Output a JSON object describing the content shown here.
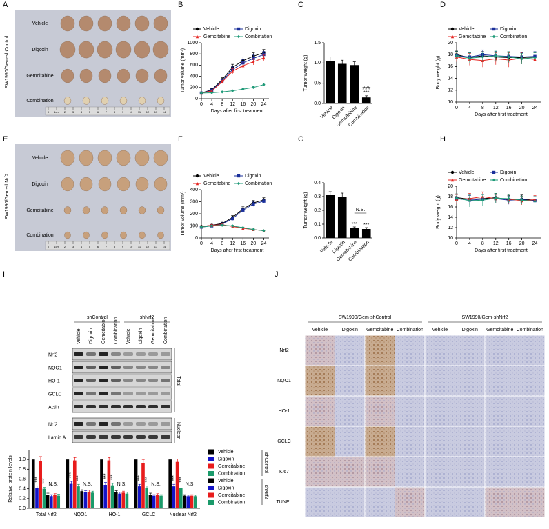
{
  "panel_letters": [
    "A",
    "B",
    "C",
    "D",
    "E",
    "F",
    "G",
    "H",
    "I",
    "J"
  ],
  "photo_panels": [
    {
      "side_label": "SW1990/Gem-shControl",
      "rows": [
        "Vehicle",
        "Digoxin",
        "Gemcitabine",
        "Combination"
      ],
      "ruler": [
        "0",
        "1cm",
        "2",
        "3",
        "4",
        "5",
        "6",
        "7",
        "8",
        "9",
        "10",
        "11",
        "12",
        "13",
        "14"
      ]
    },
    {
      "side_label": "SW1990/Gem-shNrf2",
      "rows": [
        "Vehicle",
        "Digoxin",
        "Gemcitabine",
        "Combination"
      ],
      "ruler": [
        "0",
        "1cm",
        "2",
        "3",
        "4",
        "5",
        "6",
        "7",
        "8",
        "9",
        "10",
        "11",
        "12",
        "13",
        "14"
      ]
    }
  ],
  "blot": {
    "groups": [
      "shControl",
      "shNrf2"
    ],
    "lanes": [
      "Vehicle",
      "Digoxin",
      "Gemcitabine",
      "Combination",
      "Vehicle",
      "Digoxin",
      "Gemcitabine",
      "Combination"
    ],
    "rows": [
      "Nrf2",
      "NQO1",
      "HO-1",
      "GCLC",
      "Actin",
      "Nrf2",
      "Lamin A"
    ],
    "sections": [
      "Total",
      "Nuclear"
    ]
  },
  "ihc": {
    "groups": [
      "SW1990/Gem-shControl",
      "SW1990/Gem-shNrf2"
    ],
    "columns": [
      "Vehicle",
      "Digoxin",
      "Gemcitabine",
      "Combination",
      "Vehicle",
      "Digoxin",
      "Gemcitabine",
      "Combination"
    ],
    "rows": [
      "Nrf2",
      "NQO1",
      "HO-1",
      "GCLC",
      "Ki67",
      "TUNEL"
    ]
  },
  "chart_data": [
    {
      "type": "line",
      "y_label": "Tumor volume (mm³)",
      "x_label": "Days after first treatment",
      "x": [
        0,
        4,
        8,
        12,
        16,
        20,
        24
      ],
      "xlim": [
        0,
        26
      ],
      "xticks": [
        0,
        4,
        8,
        12,
        16,
        20,
        24
      ],
      "ylim": [
        0,
        1000
      ],
      "yticks": [
        0,
        200,
        400,
        600,
        800,
        1000
      ],
      "series": [
        {
          "name": "Vehicle",
          "color": "#000000",
          "marker": "circle",
          "values": [
            100,
            160,
            340,
            560,
            680,
            760,
            820
          ],
          "errors": [
            8,
            20,
            35,
            55,
            65,
            60,
            60
          ]
        },
        {
          "name": "Digoxin",
          "color": "#1a2f9a",
          "marker": "square",
          "values": [
            100,
            150,
            320,
            520,
            640,
            720,
            790
          ],
          "errors": [
            8,
            18,
            30,
            50,
            60,
            60,
            55
          ]
        },
        {
          "name": "Gemcitabine",
          "color": "#e52420",
          "marker": "triangle",
          "values": [
            100,
            140,
            300,
            490,
            590,
            660,
            730
          ],
          "errors": [
            8,
            15,
            30,
            45,
            50,
            55,
            50
          ]
        },
        {
          "name": "Combination",
          "color": "#1f9a78",
          "marker": "diamond",
          "values": [
            100,
            105,
            120,
            140,
            170,
            200,
            250
          ],
          "errors": [
            5,
            8,
            10,
            12,
            15,
            20,
            25
          ]
        }
      ]
    },
    {
      "type": "bar",
      "y_label": "Tumor weight (g)",
      "categories": [
        "Vehicle",
        "Digoxin",
        "Gemcitabine",
        "Combination"
      ],
      "values": [
        1.05,
        0.98,
        0.95,
        0.15
      ],
      "errors": [
        0.1,
        0.09,
        0.08,
        0.04
      ],
      "color": "#000000",
      "ylim": [
        0,
        1.5
      ],
      "yticks": [
        {
          "value": 0,
          "label": "0.0"
        },
        0.5,
        {
          "value": 1,
          "label": "1.0"
        },
        1.5
      ],
      "annotations": [
        {
          "text": "***",
          "category": "Combination"
        },
        {
          "text": "###",
          "category": "Combination"
        }
      ]
    },
    {
      "type": "line",
      "y_label": "Body weight (g)",
      "x_label": "Days after first treatment",
      "x": [
        0,
        4,
        8,
        12,
        16,
        20,
        24
      ],
      "xlim": [
        0,
        26
      ],
      "xticks": [
        0,
        4,
        8,
        12,
        16,
        20,
        24
      ],
      "ylim": [
        10,
        20
      ],
      "yticks": [
        10,
        12,
        14,
        16,
        18,
        20
      ],
      "series": [
        {
          "name": "Vehicle",
          "color": "#000000",
          "marker": "circle",
          "values": [
            18,
            17.5,
            17.8,
            17.6,
            17.5,
            17.5,
            17.6
          ],
          "errors": [
            0.6,
            0.8,
            0.7,
            0.8,
            0.9,
            0.8,
            0.7
          ]
        },
        {
          "name": "Digoxin",
          "color": "#1a2f9a",
          "marker": "square",
          "values": [
            17.8,
            17.6,
            18,
            17.8,
            17.7,
            17.6,
            17.7
          ],
          "errors": [
            0.7,
            0.7,
            0.8,
            0.7,
            0.8,
            0.7,
            0.8
          ]
        },
        {
          "name": "Gemcitabine",
          "color": "#e52420",
          "marker": "triangle",
          "values": [
            17.6,
            17.2,
            17,
            17.3,
            17.1,
            17.4,
            17.2
          ],
          "errors": [
            0.8,
            1,
            1.1,
            1,
            1.2,
            1,
            0.9
          ]
        },
        {
          "name": "Combination",
          "color": "#1f9a78",
          "marker": "diamond",
          "values": [
            17.8,
            17.4,
            17.6,
            17.8,
            17.6,
            17.3,
            17.5
          ],
          "errors": [
            0.7,
            0.9,
            0.8,
            0.8,
            0.9,
            0.9,
            0.8
          ]
        }
      ]
    },
    {
      "type": "line",
      "y_label": "Tumor volume (mm³)",
      "x_label": "Days after first treatment",
      "x": [
        0,
        4,
        8,
        12,
        16,
        20,
        24
      ],
      "xlim": [
        0,
        26
      ],
      "xticks": [
        0,
        4,
        8,
        12,
        16,
        20,
        24
      ],
      "ylim": [
        0,
        400
      ],
      "yticks": [
        0,
        100,
        200,
        300,
        400
      ],
      "series": [
        {
          "name": "Vehicle",
          "color": "#000000",
          "marker": "circle",
          "values": [
            95,
            105,
            120,
            170,
            240,
            290,
            315
          ],
          "errors": [
            5,
            8,
            10,
            15,
            18,
            20,
            18
          ]
        },
        {
          "name": "Digoxin",
          "color": "#1a2f9a",
          "marker": "square",
          "values": [
            90,
            100,
            115,
            160,
            230,
            280,
            305
          ],
          "errors": [
            5,
            8,
            10,
            14,
            16,
            18,
            18
          ]
        },
        {
          "name": "Gemcitabine",
          "color": "#e52420",
          "marker": "triangle",
          "values": [
            95,
            105,
            110,
            95,
            80,
            70,
            60
          ],
          "errors": [
            5,
            6,
            8,
            6,
            5,
            5,
            4
          ]
        },
        {
          "name": "Combination",
          "color": "#1f9a78",
          "marker": "diamond",
          "values": [
            90,
            100,
            105,
            100,
            85,
            70,
            60
          ],
          "errors": [
            5,
            6,
            7,
            6,
            5,
            4,
            4
          ]
        }
      ]
    },
    {
      "type": "bar",
      "y_label": "Tumor weight (g)",
      "categories": [
        "Vehicle",
        "Digoxin",
        "Gemcitabine",
        "Combination"
      ],
      "values": [
        0.31,
        0.295,
        0.07,
        0.065
      ],
      "errors": [
        0.025,
        0.03,
        0.01,
        0.01
      ],
      "color": "#000000",
      "ylim": [
        0,
        0.4
      ],
      "yticks": [
        {
          "value": 0,
          "label": "0.0"
        },
        0.1,
        0.2,
        0.3,
        0.4
      ],
      "annotations": [
        {
          "text": "***",
          "category": "Gemcitabine"
        },
        {
          "text": "***",
          "category": "Combination"
        },
        {
          "text": "N.S.",
          "category": "Gemcitabine"
        }
      ]
    },
    {
      "type": "line",
      "y_label": "Body weight (g)",
      "x_label": "Days after first treatment",
      "x": [
        0,
        4,
        8,
        12,
        16,
        20,
        24
      ],
      "xlim": [
        0,
        26
      ],
      "xticks": [
        0,
        4,
        8,
        12,
        16,
        20,
        24
      ],
      "ylim": [
        10,
        20
      ],
      "yticks": [
        10,
        12,
        14,
        16,
        18,
        20
      ],
      "series": [
        {
          "name": "Vehicle",
          "color": "#000000",
          "marker": "circle",
          "values": [
            17.8,
            17.5,
            17.6,
            17.8,
            17.4,
            17.5,
            17.3
          ],
          "errors": [
            0.7,
            0.9,
            0.8,
            0.8,
            0.8,
            0.8,
            0.7
          ]
        },
        {
          "name": "Digoxin",
          "color": "#1a2f9a",
          "marker": "square",
          "values": [
            17.6,
            17.3,
            17.5,
            17.6,
            17.3,
            17.4,
            17.2
          ],
          "errors": [
            0.8,
            0.9,
            0.9,
            0.8,
            0.8,
            0.7,
            0.8
          ]
        },
        {
          "name": "Gemcitabine",
          "color": "#e52420",
          "marker": "triangle",
          "values": [
            17.5,
            17.6,
            18,
            17.6,
            17.5,
            17.2,
            17.4
          ],
          "errors": [
            0.9,
            1,
            0.9,
            0.8,
            0.9,
            0.8,
            0.8
          ]
        },
        {
          "name": "Combination",
          "color": "#1f9a78",
          "marker": "diamond",
          "values": [
            17.7,
            17.2,
            17.3,
            17.7,
            17.6,
            17.3,
            17.1
          ],
          "errors": [
            0.8,
            1.2,
            1.1,
            0.9,
            0.8,
            0.8,
            0.9
          ]
        }
      ]
    },
    {
      "type": "grouped-bar",
      "y_label": "Relative protein levels",
      "categories": [
        "Total Nrf2",
        "NQO1",
        "HO-1",
        "GCLC",
        "Nuclear Nrf2"
      ],
      "ylim": [
        0,
        1.2
      ],
      "yticks": [
        {
          "value": 0,
          "label": "0.0"
        },
        0.2,
        0.4,
        0.6,
        0.8,
        {
          "value": 1,
          "label": "1.0"
        }
      ],
      "legend_groups": [
        "shControl",
        "shNrf2"
      ],
      "annotations": [
        "***",
        "N.S."
      ],
      "series": [
        {
          "name": "Vehicle",
          "color": "#000000",
          "values": [
            1,
            1,
            1,
            1,
            1
          ],
          "errors": [
            0,
            0,
            0,
            0,
            0
          ]
        },
        {
          "name": "Digoxin",
          "color": "#1414c8",
          "values": [
            0.42,
            0.5,
            0.48,
            0.45,
            0.45
          ],
          "errors": [
            0.04,
            0.05,
            0.05,
            0.04,
            0.04
          ]
        },
        {
          "name": "Gemcitabine",
          "color": "#e81c1c",
          "values": [
            0.97,
            0.98,
            0.98,
            0.93,
            0.95
          ],
          "errors": [
            0.09,
            0.06,
            0.06,
            0.07,
            0.06
          ]
        },
        {
          "name": "Combination",
          "color": "#1a9a6a",
          "values": [
            0.4,
            0.45,
            0.47,
            0.42,
            0.42
          ],
          "errors": [
            0.03,
            0.04,
            0.04,
            0.04,
            0.04
          ]
        },
        {
          "name": "Vehicle",
          "color": "#000000",
          "values": [
            0.28,
            0.35,
            0.33,
            0.28,
            0.26
          ],
          "errors": [
            0.03,
            0.03,
            0.03,
            0.03,
            0.02
          ]
        },
        {
          "name": "Digoxin",
          "color": "#1414c8",
          "values": [
            0.25,
            0.33,
            0.3,
            0.26,
            0.25
          ],
          "errors": [
            0.03,
            0.03,
            0.03,
            0.02,
            0.02
          ]
        },
        {
          "name": "Gemcitabine",
          "color": "#e81c1c",
          "values": [
            0.27,
            0.34,
            0.32,
            0.27,
            0.26
          ],
          "errors": [
            0.03,
            0.03,
            0.03,
            0.03,
            0.02
          ]
        },
        {
          "name": "Combination",
          "color": "#1a9a6a",
          "values": [
            0.26,
            0.32,
            0.3,
            0.26,
            0.25
          ],
          "errors": [
            0.03,
            0.03,
            0.03,
            0.02,
            0.02
          ]
        }
      ]
    }
  ]
}
